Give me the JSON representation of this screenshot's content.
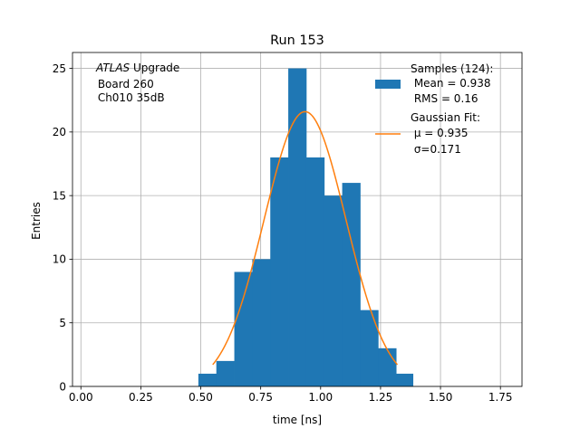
{
  "chart_data": {
    "type": "bar",
    "title": "Run 153",
    "xlabel": "time [ns]",
    "ylabel": "Entries",
    "xlim": [
      -0.035,
      1.84
    ],
    "ylim": [
      0,
      26.25
    ],
    "x_ticks": [
      0.0,
      0.25,
      0.5,
      0.75,
      1.0,
      1.25,
      1.5,
      1.75
    ],
    "x_tick_labels": [
      "0.00",
      "0.25",
      "0.50",
      "0.75",
      "1.00",
      "1.25",
      "1.50",
      "1.75"
    ],
    "y_ticks": [
      0,
      5,
      10,
      15,
      20,
      25
    ],
    "y_tick_labels": [
      "0",
      "5",
      "10",
      "15",
      "20",
      "25"
    ],
    "grid": true,
    "histogram": {
      "name": "Samples (124):",
      "color": "#1f77b4",
      "bins": [
        {
          "x0": 0.49,
          "x1": 0.565,
          "count": 1
        },
        {
          "x0": 0.565,
          "x1": 0.64,
          "count": 2
        },
        {
          "x0": 0.64,
          "x1": 0.715,
          "count": 9
        },
        {
          "x0": 0.715,
          "x1": 0.79,
          "count": 10
        },
        {
          "x0": 0.79,
          "x1": 0.865,
          "count": 18
        },
        {
          "x0": 0.865,
          "x1": 0.94,
          "count": 25
        },
        {
          "x0": 0.94,
          "x1": 1.015,
          "count": 18
        },
        {
          "x0": 1.015,
          "x1": 1.09,
          "count": 15
        },
        {
          "x0": 1.09,
          "x1": 1.165,
          "count": 16
        },
        {
          "x0": 1.165,
          "x1": 1.24,
          "count": 6
        },
        {
          "x0": 1.24,
          "x1": 1.315,
          "count": 3
        },
        {
          "x0": 1.315,
          "x1": 1.385,
          "count": 1
        }
      ]
    },
    "fit": {
      "name": "Gaussian Fit:",
      "color": "#ff7f0e",
      "amplitude": 21.6,
      "mu": 0.935,
      "sigma": 0.171,
      "x_range": [
        0.55,
        1.32
      ]
    },
    "annotation": {
      "italic": "ATLAS",
      "line1_rest": " Upgrade",
      "line2": " Board 260",
      "line3": " Ch010 35dB"
    },
    "legend": {
      "position": "top-right",
      "entries": [
        {
          "lines": [
            "Samples (124):",
            " Mean = 0.938",
            " RMS = 0.16"
          ],
          "color": "#1f77b4",
          "kind": "patch"
        },
        {
          "lines": [
            "Gaussian Fit:",
            " μ = 0.935",
            " σ=0.171"
          ],
          "color": "#ff7f0e",
          "kind": "line"
        }
      ]
    }
  }
}
